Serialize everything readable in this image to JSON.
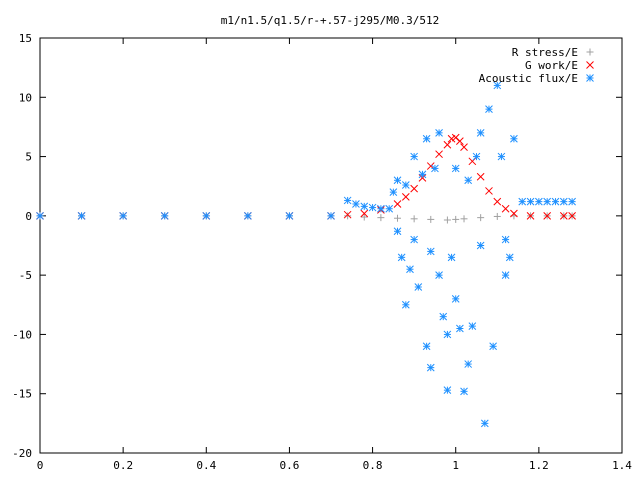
{
  "chart_data": {
    "type": "scatter",
    "title": "m1/n1.5/q1.5/r-+.57-j295/M0.3/512",
    "xlabel": "",
    "ylabel": "",
    "xlim": [
      0,
      1.4
    ],
    "ylim": [
      -20,
      15
    ],
    "x_ticks": [
      "0",
      "0.2",
      "0.4",
      "0.6",
      "0.8",
      "1",
      "1.2",
      "1.4"
    ],
    "y_ticks": [
      "15",
      "10",
      "5",
      "0",
      "-5",
      "-10",
      "-15",
      "-20"
    ],
    "grid": false,
    "legend_position": "top-right",
    "series": [
      {
        "name": "R stress/E",
        "marker": "plus",
        "color": "#a0a0a0",
        "x": [
          0.0,
          0.1,
          0.2,
          0.3,
          0.4,
          0.5,
          0.6,
          0.7,
          0.74,
          0.78,
          0.82,
          0.86,
          0.9,
          0.94,
          0.98,
          1.0,
          1.02,
          1.06,
          1.1,
          1.14,
          1.18,
          1.22,
          1.26,
          1.28
        ],
        "y": [
          0.0,
          0.0,
          0.0,
          0.0,
          0.0,
          0.0,
          0.0,
          0.0,
          0.0,
          -0.1,
          -0.15,
          -0.2,
          -0.25,
          -0.3,
          -0.35,
          -0.3,
          -0.25,
          -0.15,
          -0.05,
          0.0,
          0.0,
          0.0,
          0.0,
          0.0
        ]
      },
      {
        "name": "G work/E",
        "marker": "cross",
        "color": "#ff0000",
        "x": [
          0.0,
          0.1,
          0.2,
          0.3,
          0.4,
          0.5,
          0.6,
          0.7,
          0.74,
          0.78,
          0.82,
          0.86,
          0.88,
          0.9,
          0.92,
          0.94,
          0.96,
          0.98,
          0.99,
          1.0,
          1.01,
          1.02,
          1.04,
          1.06,
          1.08,
          1.1,
          1.12,
          1.14,
          1.18,
          1.22,
          1.26,
          1.28
        ],
        "y": [
          0.0,
          0.0,
          0.0,
          0.0,
          0.0,
          0.0,
          0.0,
          0.0,
          0.1,
          0.2,
          0.5,
          1.0,
          1.6,
          2.3,
          3.2,
          4.2,
          5.2,
          6.0,
          6.5,
          6.6,
          6.3,
          5.8,
          4.6,
          3.3,
          2.1,
          1.2,
          0.6,
          0.2,
          0.0,
          0.0,
          0.0,
          0.0
        ]
      },
      {
        "name": "Acoustic flux/E",
        "marker": "star",
        "color": "#1e90ff",
        "x": [
          0.0,
          0.1,
          0.2,
          0.3,
          0.4,
          0.5,
          0.6,
          0.7,
          0.74,
          0.76,
          0.78,
          0.8,
          0.82,
          0.84,
          0.85,
          0.86,
          0.86,
          0.87,
          0.88,
          0.88,
          0.89,
          0.9,
          0.9,
          0.91,
          0.92,
          0.93,
          0.93,
          0.94,
          0.94,
          0.95,
          0.96,
          0.96,
          0.97,
          0.98,
          0.98,
          0.99,
          1.0,
          1.0,
          1.01,
          1.02,
          1.03,
          1.03,
          1.04,
          1.05,
          1.06,
          1.06,
          1.07,
          1.08,
          1.09,
          1.1,
          1.11,
          1.12,
          1.12,
          1.13,
          1.14,
          1.16,
          1.18,
          1.2,
          1.22,
          1.24,
          1.26,
          1.28
        ],
        "y": [
          0.0,
          0.0,
          0.0,
          0.0,
          0.0,
          0.0,
          0.0,
          0.0,
          1.3,
          1.0,
          0.8,
          0.7,
          0.6,
          0.6,
          2.0,
          -1.3,
          3.0,
          -3.5,
          2.6,
          -7.5,
          -4.5,
          5.0,
          -2.0,
          -6.0,
          3.5,
          -11.0,
          6.5,
          -3.0,
          -12.8,
          4.0,
          -5.0,
          7.0,
          -8.5,
          -14.7,
          -10.0,
          -3.5,
          4.0,
          -7.0,
          -9.5,
          -14.8,
          3.0,
          -12.5,
          -9.3,
          5.0,
          7.0,
          -2.5,
          -17.5,
          9.0,
          -11.0,
          11.0,
          5.0,
          -5.0,
          -2.0,
          -3.5,
          6.5,
          1.2,
          1.2,
          1.2,
          1.2,
          1.2,
          1.2,
          1.2
        ]
      }
    ]
  }
}
